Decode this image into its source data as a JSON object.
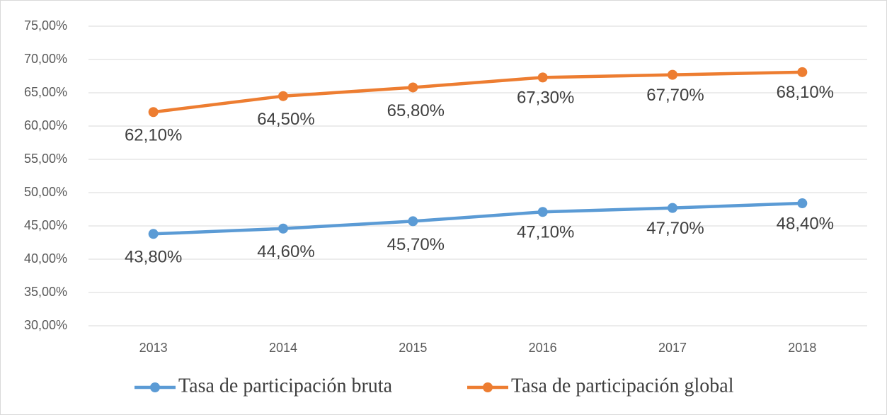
{
  "chart_data": {
    "type": "line",
    "categories": [
      "2013",
      "2014",
      "2015",
      "2016",
      "2017",
      "2018"
    ],
    "series": [
      {
        "name": "Tasa de participación bruta",
        "color": "#5b9bd5",
        "values": [
          43.8,
          44.6,
          45.7,
          47.1,
          47.7,
          48.4
        ],
        "value_labels": [
          "43,80%",
          "44,60%",
          "45,70%",
          "47,10%",
          "47,70%",
          "48,40%"
        ]
      },
      {
        "name": "Tasa de participación global",
        "color": "#ed7d31",
        "values": [
          62.1,
          64.5,
          65.8,
          67.3,
          67.7,
          68.1
        ],
        "value_labels": [
          "62,10%",
          "64,50%",
          "65,80%",
          "67,30%",
          "67,70%",
          "68,10%"
        ]
      }
    ],
    "ylim": [
      30,
      75
    ],
    "yticks": [
      {
        "value": 30,
        "label": "30,00%"
      },
      {
        "value": 35,
        "label": "35,00%"
      },
      {
        "value": 40,
        "label": "40,00%"
      },
      {
        "value": 45,
        "label": "45,00%"
      },
      {
        "value": 50,
        "label": "50,00%"
      },
      {
        "value": 55,
        "label": "55,00%"
      },
      {
        "value": 60,
        "label": "60,00%"
      },
      {
        "value": 65,
        "label": "65,00%"
      },
      {
        "value": 70,
        "label": "70,00%"
      },
      {
        "value": 75,
        "label": "75,00%"
      }
    ],
    "grid": true,
    "legend": "bottom"
  }
}
